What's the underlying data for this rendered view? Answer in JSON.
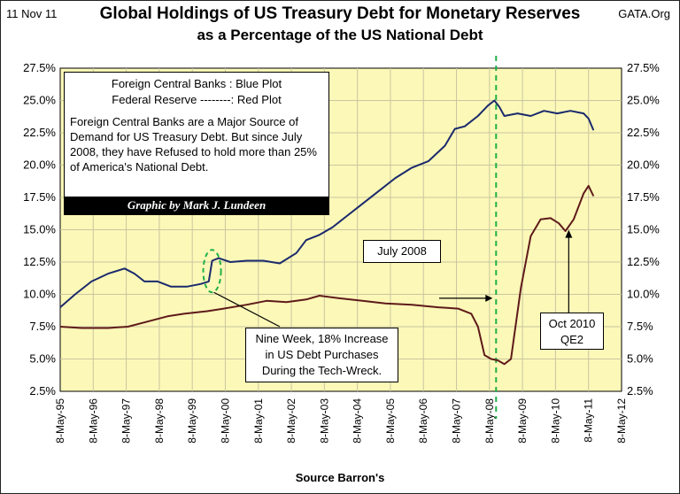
{
  "header": {
    "date": "11 Nov 11",
    "title_line1": "Global Holdings of US Treasury Debt for Monetary Reserves",
    "title_line2": "as a Percentage of the US National Debt",
    "site": "GATA.Org"
  },
  "legend_box": {
    "line1": "Foreign Central Banks : Blue Plot",
    "line2": "Federal Reserve --------: Red Plot",
    "body": "Foreign Central Banks are a Major Source of Demand for US Treasury Debt.  But since July 2008, they have Refused to hold more than 25% of America's National Debt.",
    "credit": "Graphic by Mark J. Lundeen"
  },
  "annotations": {
    "july2008": "July 2008",
    "tech_wreck": "Nine Week, 18% Increase in US Debt Purchases During the Tech-Wreck.",
    "qe2_line1": "Oct 2010",
    "qe2_line2": "QE2"
  },
  "footer": {
    "source": "Source Barron's"
  },
  "colors": {
    "plot_bg": "#fcf8b8",
    "blue": "#1a2a6c",
    "red": "#5e1a1a",
    "dashed": "#22b04a",
    "grid": "#c9c6a0"
  },
  "chart_data": {
    "type": "line",
    "title": "Global Holdings of US Treasury Debt for Monetary Reserves as a Percentage of the US National Debt",
    "xlabel": "Source Barron's",
    "ylabel": "",
    "xlim": [
      1995.35,
      2012.35
    ],
    "ylim": [
      2.5,
      27.5
    ],
    "yticks": [
      "2.5%",
      "5.0%",
      "7.5%",
      "10.0%",
      "12.5%",
      "15.0%",
      "17.5%",
      "20.0%",
      "22.5%",
      "25.0%",
      "27.5%"
    ],
    "xticks": [
      "8-May-95",
      "8-May-96",
      "8-May-97",
      "8-May-98",
      "8-May-99",
      "8-May-00",
      "8-May-01",
      "8-May-02",
      "8-May-03",
      "8-May-04",
      "8-May-05",
      "8-May-06",
      "8-May-07",
      "8-May-08",
      "8-May-09",
      "8-May-10",
      "8-May-11",
      "8-May-12"
    ],
    "grid": true,
    "vline_x": 2008.55,
    "series": [
      {
        "name": "Foreign Central Banks",
        "x": [
          1995.35,
          1995.8,
          1996.3,
          1996.8,
          1997.3,
          1997.6,
          1997.9,
          1998.3,
          1998.7,
          1999.2,
          1999.6,
          1999.85,
          1999.95,
          2000.15,
          2000.5,
          2001.0,
          2001.5,
          2002.0,
          2002.5,
          2002.8,
          2003.2,
          2003.6,
          2004.0,
          2004.5,
          2005.0,
          2005.5,
          2006.0,
          2006.5,
          2007.0,
          2007.3,
          2007.6,
          2008.0,
          2008.3,
          2008.5,
          2008.65,
          2008.8,
          2009.2,
          2009.6,
          2010.0,
          2010.4,
          2010.8,
          2011.2,
          2011.35,
          2011.5
        ],
        "values": [
          9.0,
          10.0,
          11.0,
          11.6,
          12.0,
          11.6,
          11.0,
          11.0,
          10.6,
          10.6,
          10.8,
          11.0,
          12.6,
          12.8,
          12.5,
          12.6,
          12.6,
          12.4,
          13.2,
          14.2,
          14.6,
          15.2,
          16.0,
          17.0,
          18.0,
          19.0,
          19.8,
          20.3,
          21.5,
          22.8,
          23.0,
          23.8,
          24.6,
          25.0,
          24.5,
          23.8,
          24.0,
          23.8,
          24.2,
          24.0,
          24.2,
          24.0,
          23.6,
          22.7
        ]
      },
      {
        "name": "Federal Reserve",
        "x": [
          1995.35,
          1996.0,
          1996.8,
          1997.4,
          1998.0,
          1998.6,
          1999.1,
          1999.8,
          2000.3,
          2001.0,
          2001.6,
          2002.2,
          2002.8,
          2003.2,
          2003.8,
          2004.5,
          2005.2,
          2006.0,
          2006.8,
          2007.4,
          2007.8,
          2008.0,
          2008.2,
          2008.4,
          2008.6,
          2008.8,
          2009.0,
          2009.3,
          2009.6,
          2009.9,
          2010.2,
          2010.45,
          2010.65,
          2010.9,
          2011.2,
          2011.35,
          2011.5
        ],
        "values": [
          7.5,
          7.4,
          7.4,
          7.5,
          7.9,
          8.3,
          8.5,
          8.7,
          8.9,
          9.2,
          9.5,
          9.4,
          9.6,
          9.9,
          9.7,
          9.5,
          9.3,
          9.2,
          9.0,
          8.9,
          8.5,
          7.5,
          5.3,
          5.0,
          4.9,
          4.6,
          5.0,
          10.5,
          14.5,
          15.8,
          15.9,
          15.5,
          14.9,
          15.8,
          17.8,
          18.4,
          17.6
        ]
      }
    ]
  }
}
